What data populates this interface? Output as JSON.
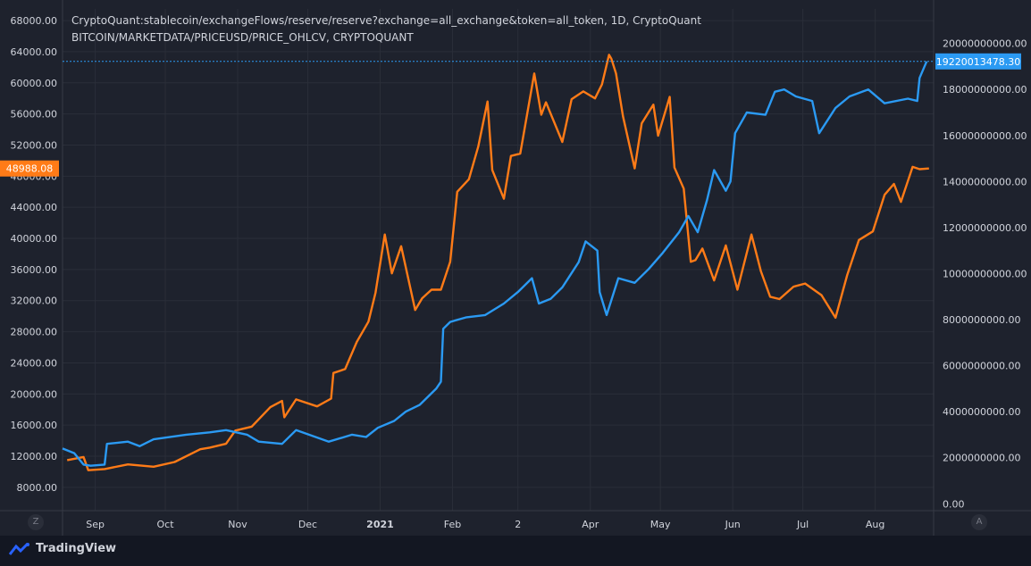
{
  "legend": {
    "line1": "CryptoQuant:stablecoin/exchangeFlows/reserve/reserve?exchange=all_exchange&token=all_token, 1D, CryptoQuant",
    "line2": "BITCOIN/MARKETDATA/PRICEUSD/PRICE_OHLCV, CRYPTOQUANT"
  },
  "branding": {
    "name": "TradingView",
    "logo_icon": "tradingview-logo-icon"
  },
  "controls": {
    "left_scale_button": "Z",
    "right_scale_button": "A"
  },
  "colors": {
    "background": "#1e222d",
    "btc_series": "#ff7b17",
    "reserve_series": "#2b9af3",
    "grid": "#2a2e39",
    "axis_text": "#d1d4dc"
  },
  "chart_data": {
    "type": "line",
    "x_ticks": [
      "Sep",
      "Oct",
      "Nov",
      "Dec",
      "2021",
      "Feb",
      "2",
      "Apr",
      "May",
      "Jun",
      "Jul",
      "Aug"
    ],
    "left_axis": {
      "ticks": [
        "8000.00",
        "12000.00",
        "16000.00",
        "20000.00",
        "24000.00",
        "28000.00",
        "32000.00",
        "36000.00",
        "40000.00",
        "44000.00",
        "48000.00",
        "52000.00",
        "56000.00",
        "60000.00",
        "64000.00",
        "68000.00"
      ],
      "range": [
        5000,
        69500
      ]
    },
    "right_axis": {
      "ticks": [
        "0.00",
        "2000000000.00",
        "4000000000.00",
        "6000000000.00",
        "8000000000.00",
        "10000000000.00",
        "12000000000.00",
        "14000000000.00",
        "16000000000.00",
        "18000000000.00",
        "20000000000.00"
      ],
      "range": [
        -300000000,
        21500000000
      ]
    },
    "last_values": {
      "btc": "48988.08",
      "reserve": "19220013478.30"
    },
    "x_range": [
      "2020-08-23",
      "2021-08-31"
    ],
    "series": [
      {
        "axis": "left",
        "points": [
          [
            "2020-08-25",
            11500
          ],
          [
            "2020-09-01",
            11900
          ],
          [
            "2020-09-03",
            10200
          ],
          [
            "2020-09-10",
            10350
          ],
          [
            "2020-09-20",
            10950
          ],
          [
            "2020-10-01",
            10650
          ],
          [
            "2020-10-10",
            11250
          ],
          [
            "2020-10-21",
            12900
          ],
          [
            "2020-10-25",
            13100
          ],
          [
            "2020-11-01",
            13600
          ],
          [
            "2020-11-05",
            15300
          ],
          [
            "2020-11-12",
            15800
          ],
          [
            "2020-11-20",
            18300
          ],
          [
            "2020-11-25",
            19100
          ],
          [
            "2020-11-26",
            17000
          ],
          [
            "2020-12-01",
            19300
          ],
          [
            "2020-12-10",
            18400
          ],
          [
            "2020-12-16",
            19400
          ],
          [
            "2020-12-17",
            22700
          ],
          [
            "2020-12-22",
            23200
          ],
          [
            "2020-12-27",
            26700
          ],
          [
            "2021-01-01",
            29300
          ],
          [
            "2021-01-04",
            33000
          ],
          [
            "2021-01-08",
            40500
          ],
          [
            "2021-01-11",
            35500
          ],
          [
            "2021-01-15",
            39000
          ],
          [
            "2021-01-21",
            30800
          ],
          [
            "2021-01-24",
            32300
          ],
          [
            "2021-01-28",
            33400
          ],
          [
            "2021-02-01",
            33400
          ],
          [
            "2021-02-05",
            37000
          ],
          [
            "2021-02-08",
            46000
          ],
          [
            "2021-02-13",
            47600
          ],
          [
            "2021-02-17",
            51800
          ],
          [
            "2021-02-21",
            57600
          ],
          [
            "2021-02-23",
            48800
          ],
          [
            "2021-02-28",
            45100
          ],
          [
            "2021-03-03",
            50600
          ],
          [
            "2021-03-07",
            50900
          ],
          [
            "2021-03-13",
            61200
          ],
          [
            "2021-03-16",
            55900
          ],
          [
            "2021-03-18",
            57500
          ],
          [
            "2021-03-25",
            52400
          ],
          [
            "2021-03-29",
            57900
          ],
          [
            "2021-04-03",
            58900
          ],
          [
            "2021-04-08",
            58000
          ],
          [
            "2021-04-11",
            59800
          ],
          [
            "2021-04-14",
            63600
          ],
          [
            "2021-04-15",
            63100
          ],
          [
            "2021-04-17",
            61200
          ],
          [
            "2021-04-20",
            55700
          ],
          [
            "2021-04-25",
            49000
          ],
          [
            "2021-04-28",
            54800
          ],
          [
            "2021-05-03",
            57200
          ],
          [
            "2021-05-05",
            53200
          ],
          [
            "2021-05-10",
            58200
          ],
          [
            "2021-05-12",
            49100
          ],
          [
            "2021-05-16",
            46400
          ],
          [
            "2021-05-19",
            37000
          ],
          [
            "2021-05-21",
            37200
          ],
          [
            "2021-05-24",
            38700
          ],
          [
            "2021-05-29",
            34600
          ],
          [
            "2021-06-03",
            39100
          ],
          [
            "2021-06-08",
            33400
          ],
          [
            "2021-06-14",
            40500
          ],
          [
            "2021-06-18",
            35800
          ],
          [
            "2021-06-22",
            32500
          ],
          [
            "2021-06-26",
            32200
          ],
          [
            "2021-07-02",
            33800
          ],
          [
            "2021-07-07",
            34200
          ],
          [
            "2021-07-14",
            32700
          ],
          [
            "2021-07-20",
            29800
          ],
          [
            "2021-07-25",
            35300
          ],
          [
            "2021-07-30",
            39800
          ],
          [
            "2021-08-05",
            40900
          ],
          [
            "2021-08-10",
            45600
          ],
          [
            "2021-08-14",
            47000
          ],
          [
            "2021-08-17",
            44700
          ],
          [
            "2021-08-22",
            49200
          ],
          [
            "2021-08-25",
            48900
          ],
          [
            "2021-08-29",
            48988
          ]
        ]
      },
      {
        "axis": "right",
        "points": [
          [
            "2020-08-23",
            2400000000
          ],
          [
            "2020-08-28",
            2200000000
          ],
          [
            "2020-09-01",
            1700000000
          ],
          [
            "2020-09-04",
            1650000000
          ],
          [
            "2020-09-10",
            1700000000
          ],
          [
            "2020-09-11",
            2600000000
          ],
          [
            "2020-09-20",
            2700000000
          ],
          [
            "2020-09-25",
            2500000000
          ],
          [
            "2020-10-01",
            2800000000
          ],
          [
            "2020-10-15",
            3000000000
          ],
          [
            "2020-10-25",
            3100000000
          ],
          [
            "2020-11-01",
            3200000000
          ],
          [
            "2020-11-10",
            3000000000
          ],
          [
            "2020-11-15",
            2700000000
          ],
          [
            "2020-11-25",
            2600000000
          ],
          [
            "2020-12-01",
            3200000000
          ],
          [
            "2020-12-15",
            2700000000
          ],
          [
            "2020-12-25",
            3000000000
          ],
          [
            "2020-12-31",
            2900000000
          ],
          [
            "2021-01-05",
            3300000000
          ],
          [
            "2021-01-12",
            3600000000
          ],
          [
            "2021-01-17",
            4000000000
          ],
          [
            "2021-01-23",
            4300000000
          ],
          [
            "2021-01-30",
            5000000000
          ],
          [
            "2021-02-01",
            5300000000
          ],
          [
            "2021-02-02",
            7600000000
          ],
          [
            "2021-02-05",
            7900000000
          ],
          [
            "2021-02-12",
            8100000000
          ],
          [
            "2021-02-20",
            8200000000
          ],
          [
            "2021-02-28",
            8700000000
          ],
          [
            "2021-03-06",
            9200000000
          ],
          [
            "2021-03-12",
            9800000000
          ],
          [
            "2021-03-15",
            8700000000
          ],
          [
            "2021-03-20",
            8900000000
          ],
          [
            "2021-03-25",
            9400000000
          ],
          [
            "2021-04-01",
            10500000000
          ],
          [
            "2021-04-04",
            11400000000
          ],
          [
            "2021-04-09",
            11000000000
          ],
          [
            "2021-04-10",
            9200000000
          ],
          [
            "2021-04-13",
            8200000000
          ],
          [
            "2021-04-18",
            9800000000
          ],
          [
            "2021-04-25",
            9600000000
          ],
          [
            "2021-05-01",
            10200000000
          ],
          [
            "2021-05-07",
            10900000000
          ],
          [
            "2021-05-14",
            11800000000
          ],
          [
            "2021-05-18",
            12500000000
          ],
          [
            "2021-05-22",
            11800000000
          ],
          [
            "2021-05-26",
            13200000000
          ],
          [
            "2021-05-29",
            14500000000
          ],
          [
            "2021-06-03",
            13600000000
          ],
          [
            "2021-06-05",
            14000000000
          ],
          [
            "2021-06-07",
            16100000000
          ],
          [
            "2021-06-12",
            17000000000
          ],
          [
            "2021-06-20",
            16900000000
          ],
          [
            "2021-06-24",
            17900000000
          ],
          [
            "2021-06-28",
            18000000000
          ],
          [
            "2021-07-03",
            17700000000
          ],
          [
            "2021-07-10",
            17500000000
          ],
          [
            "2021-07-13",
            16100000000
          ],
          [
            "2021-07-20",
            17200000000
          ],
          [
            "2021-07-26",
            17700000000
          ],
          [
            "2021-08-03",
            18000000000
          ],
          [
            "2021-08-10",
            17400000000
          ],
          [
            "2021-08-20",
            17600000000
          ],
          [
            "2021-08-24",
            17500000000
          ],
          [
            "2021-08-25",
            18500000000
          ],
          [
            "2021-08-28",
            19220013478
          ]
        ]
      }
    ]
  }
}
